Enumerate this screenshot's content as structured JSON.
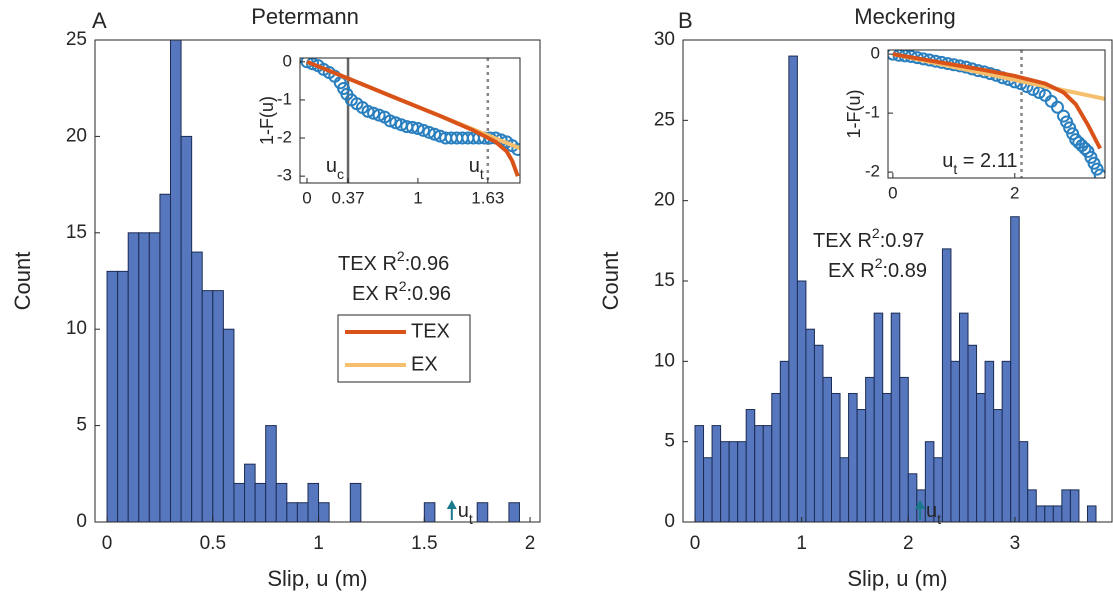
{
  "chart_data": [
    {
      "type": "histogram",
      "panel": "A",
      "title": "Petermann",
      "xlabel": "Slip, u (m)",
      "ylabel": "Count",
      "color": "#5677bd",
      "edgecolor": "#1c2c55",
      "bins": [
        0,
        0.05,
        0.1,
        0.15,
        0.2,
        0.25,
        0.3,
        0.35,
        0.4,
        0.45,
        0.5,
        0.55,
        0.6,
        0.65,
        0.7,
        0.75,
        0.8,
        0.85,
        0.9,
        0.95,
        1,
        1.05,
        1.1,
        1.15,
        1.2,
        1.25,
        1.3,
        1.35,
        1.4,
        1.45,
        1.5,
        1.55,
        1.6,
        1.65,
        1.7,
        1.75,
        1.8,
        1.85,
        1.9,
        1.95
      ],
      "counts": [
        13,
        13,
        15,
        15,
        15,
        17,
        25,
        20,
        14,
        12,
        12,
        10,
        2,
        3,
        2,
        5,
        2,
        1,
        1,
        2,
        1,
        0,
        0,
        2,
        0,
        0,
        0,
        0,
        0,
        0,
        1,
        0,
        0,
        0,
        0,
        1,
        0,
        0,
        1
      ],
      "xlim": [
        -0.057,
        2.047
      ],
      "ylim": [
        0,
        25
      ],
      "xticks": [
        0,
        0.5,
        1,
        1.5,
        2
      ],
      "yticks": [
        0,
        5,
        10,
        15,
        20,
        25
      ],
      "annotations": [
        [
          "TEX R",
          "2",
          ":0.96"
        ],
        [
          "EX R",
          "2",
          ":0.96"
        ]
      ],
      "marker": {
        "value": 1.63,
        "label": "u",
        "sub": "t",
        "color": "#1a7a8c"
      }
    },
    {
      "type": "line",
      "ylabel": "1-F(u)",
      "xlim": [
        -0.063,
        1.92
      ],
      "ylim": [
        -3.18,
        0.1
      ],
      "xticks": [
        0,
        0.37,
        1,
        1.63
      ],
      "yticks": [
        0,
        -1,
        -2,
        -3
      ],
      "legend": true,
      "scatter": {
        "color": "#2a7fbf",
        "x": [
          0,
          0.05,
          0.1,
          0.15,
          0.2,
          0.25,
          0.3,
          0.33,
          0.36,
          0.4,
          0.45,
          0.5,
          0.55,
          0.6,
          0.65,
          0.7,
          0.75,
          0.8,
          0.85,
          0.9,
          0.95,
          1,
          1.05,
          1.1,
          1.15,
          1.2,
          1.25,
          1.3,
          1.35,
          1.4,
          1.45,
          1.5,
          1.55,
          1.6,
          1.65,
          1.7,
          1.75,
          1.8,
          1.85,
          1.9
        ],
        "values": [
          0,
          -0.05,
          -0.1,
          -0.2,
          -0.28,
          -0.38,
          -0.55,
          -0.7,
          -0.85,
          -1,
          -1.1,
          -1.2,
          -1.3,
          -1.35,
          -1.4,
          -1.45,
          -1.55,
          -1.6,
          -1.65,
          -1.7,
          -1.72,
          -1.75,
          -1.8,
          -1.85,
          -1.9,
          -1.95,
          -2,
          -2,
          -2,
          -2,
          -2,
          -2,
          -2,
          -2,
          -2,
          -2,
          -2.05,
          -2.1,
          -2.2,
          -2.3
        ]
      },
      "series": [
        {
          "name": "TEX",
          "color": "#d95319",
          "x": [
            0,
            0.4,
            0.8,
            1.2,
            1.5,
            1.7,
            1.8,
            1.85,
            1.9
          ],
          "values": [
            0,
            -0.47,
            -0.95,
            -1.42,
            -1.8,
            -2.1,
            -2.35,
            -2.6,
            -3
          ]
        },
        {
          "name": "EX",
          "color": "#f5bf6e",
          "x": [
            0,
            1.92
          ],
          "values": [
            0,
            -2.27
          ]
        }
      ],
      "vlines": [
        {
          "value": 0.37,
          "label": "u",
          "sub": "c",
          "style": "solid"
        },
        {
          "value": 1.63,
          "label": "u",
          "sub": "t",
          "style": "dotted"
        }
      ]
    },
    {
      "type": "histogram",
      "panel": "B",
      "title": "Meckering",
      "xlabel": "Slip, u (m)",
      "ylabel": "Count",
      "color": "#5677bd",
      "edgecolor": "#1c2c55",
      "bins": [
        0,
        0.08,
        0.16,
        0.24,
        0.32,
        0.4,
        0.48,
        0.56,
        0.64,
        0.72,
        0.8,
        0.88,
        0.96,
        1.04,
        1.12,
        1.2,
        1.28,
        1.36,
        1.44,
        1.52,
        1.6,
        1.68,
        1.76,
        1.84,
        1.92,
        2,
        2.08,
        2.16,
        2.24,
        2.32,
        2.4,
        2.48,
        2.56,
        2.64,
        2.72,
        2.8,
        2.88,
        2.96,
        3.04,
        3.12,
        3.2,
        3.28,
        3.36,
        3.44,
        3.52,
        3.6,
        3.68,
        3.76
      ],
      "counts": [
        6,
        4,
        6,
        5,
        5,
        5,
        7,
        6,
        6,
        8,
        10,
        29,
        15,
        12,
        11,
        9,
        8,
        4,
        8,
        7,
        9,
        13,
        8,
        13,
        9,
        3,
        2,
        5,
        4,
        17,
        10,
        13,
        11,
        8,
        10,
        7,
        10,
        19,
        5,
        2,
        1,
        1,
        1,
        2,
        2,
        0,
        1
      ],
      "xlim": [
        -0.1125,
        3.91
      ],
      "ylim": [
        0,
        30
      ],
      "xticks": [
        0,
        1,
        2,
        3
      ],
      "yticks": [
        0,
        5,
        10,
        15,
        20,
        25,
        30
      ],
      "annotations": [
        [
          "TEX R",
          "2",
          ":0.97"
        ],
        [
          "EX R",
          "2",
          ":0.89"
        ]
      ],
      "marker": {
        "value": 2.11,
        "label": "u",
        "sub": "t",
        "color": "#1a7a8c"
      }
    },
    {
      "type": "line",
      "ylabel": "1-F(u)",
      "xlim": [
        -0.08,
        3.48
      ],
      "ylim": [
        -2.1,
        0.07
      ],
      "xticks": [
        0,
        2
      ],
      "yticks": [
        0,
        -1,
        -2
      ],
      "scatter": {
        "color": "#2a7fbf",
        "x": [
          0,
          0.1,
          0.2,
          0.3,
          0.4,
          0.5,
          0.6,
          0.7,
          0.8,
          0.9,
          1,
          1.1,
          1.2,
          1.3,
          1.4,
          1.5,
          1.6,
          1.7,
          1.8,
          1.9,
          2,
          2.1,
          2.2,
          2.3,
          2.4,
          2.5,
          2.6,
          2.7,
          2.8,
          2.85,
          2.9,
          2.95,
          3,
          3.05,
          3.1,
          3.15,
          3.2,
          3.25,
          3.3,
          3.35,
          3.4
        ],
        "values": [
          0,
          -0.02,
          -0.03,
          -0.04,
          -0.06,
          -0.08,
          -0.1,
          -0.12,
          -0.14,
          -0.16,
          -0.18,
          -0.2,
          -0.22,
          -0.25,
          -0.28,
          -0.3,
          -0.33,
          -0.36,
          -0.4,
          -0.43,
          -0.47,
          -0.5,
          -0.55,
          -0.6,
          -0.65,
          -0.7,
          -0.8,
          -0.9,
          -1.05,
          -1.15,
          -1.25,
          -1.35,
          -1.45,
          -1.5,
          -1.55,
          -1.6,
          -1.65,
          -1.75,
          -1.85,
          -1.95,
          -2.05
        ]
      },
      "series": [
        {
          "name": "TEX",
          "color": "#d95319",
          "x": [
            0,
            0.5,
            1,
            1.5,
            2,
            2.5,
            2.8,
            3,
            3.2,
            3.4
          ],
          "values": [
            0,
            -0.09,
            -0.18,
            -0.27,
            -0.37,
            -0.5,
            -0.65,
            -0.85,
            -1.2,
            -1.6
          ]
        },
        {
          "name": "EX",
          "color": "#f5bf6e",
          "x": [
            0,
            3.48
          ],
          "values": [
            0,
            -0.76
          ]
        }
      ],
      "vlines": [
        {
          "value": 2.11,
          "label": "u",
          "sub": "t",
          "suffix": " = 2.11",
          "style": "dotted"
        }
      ]
    }
  ]
}
